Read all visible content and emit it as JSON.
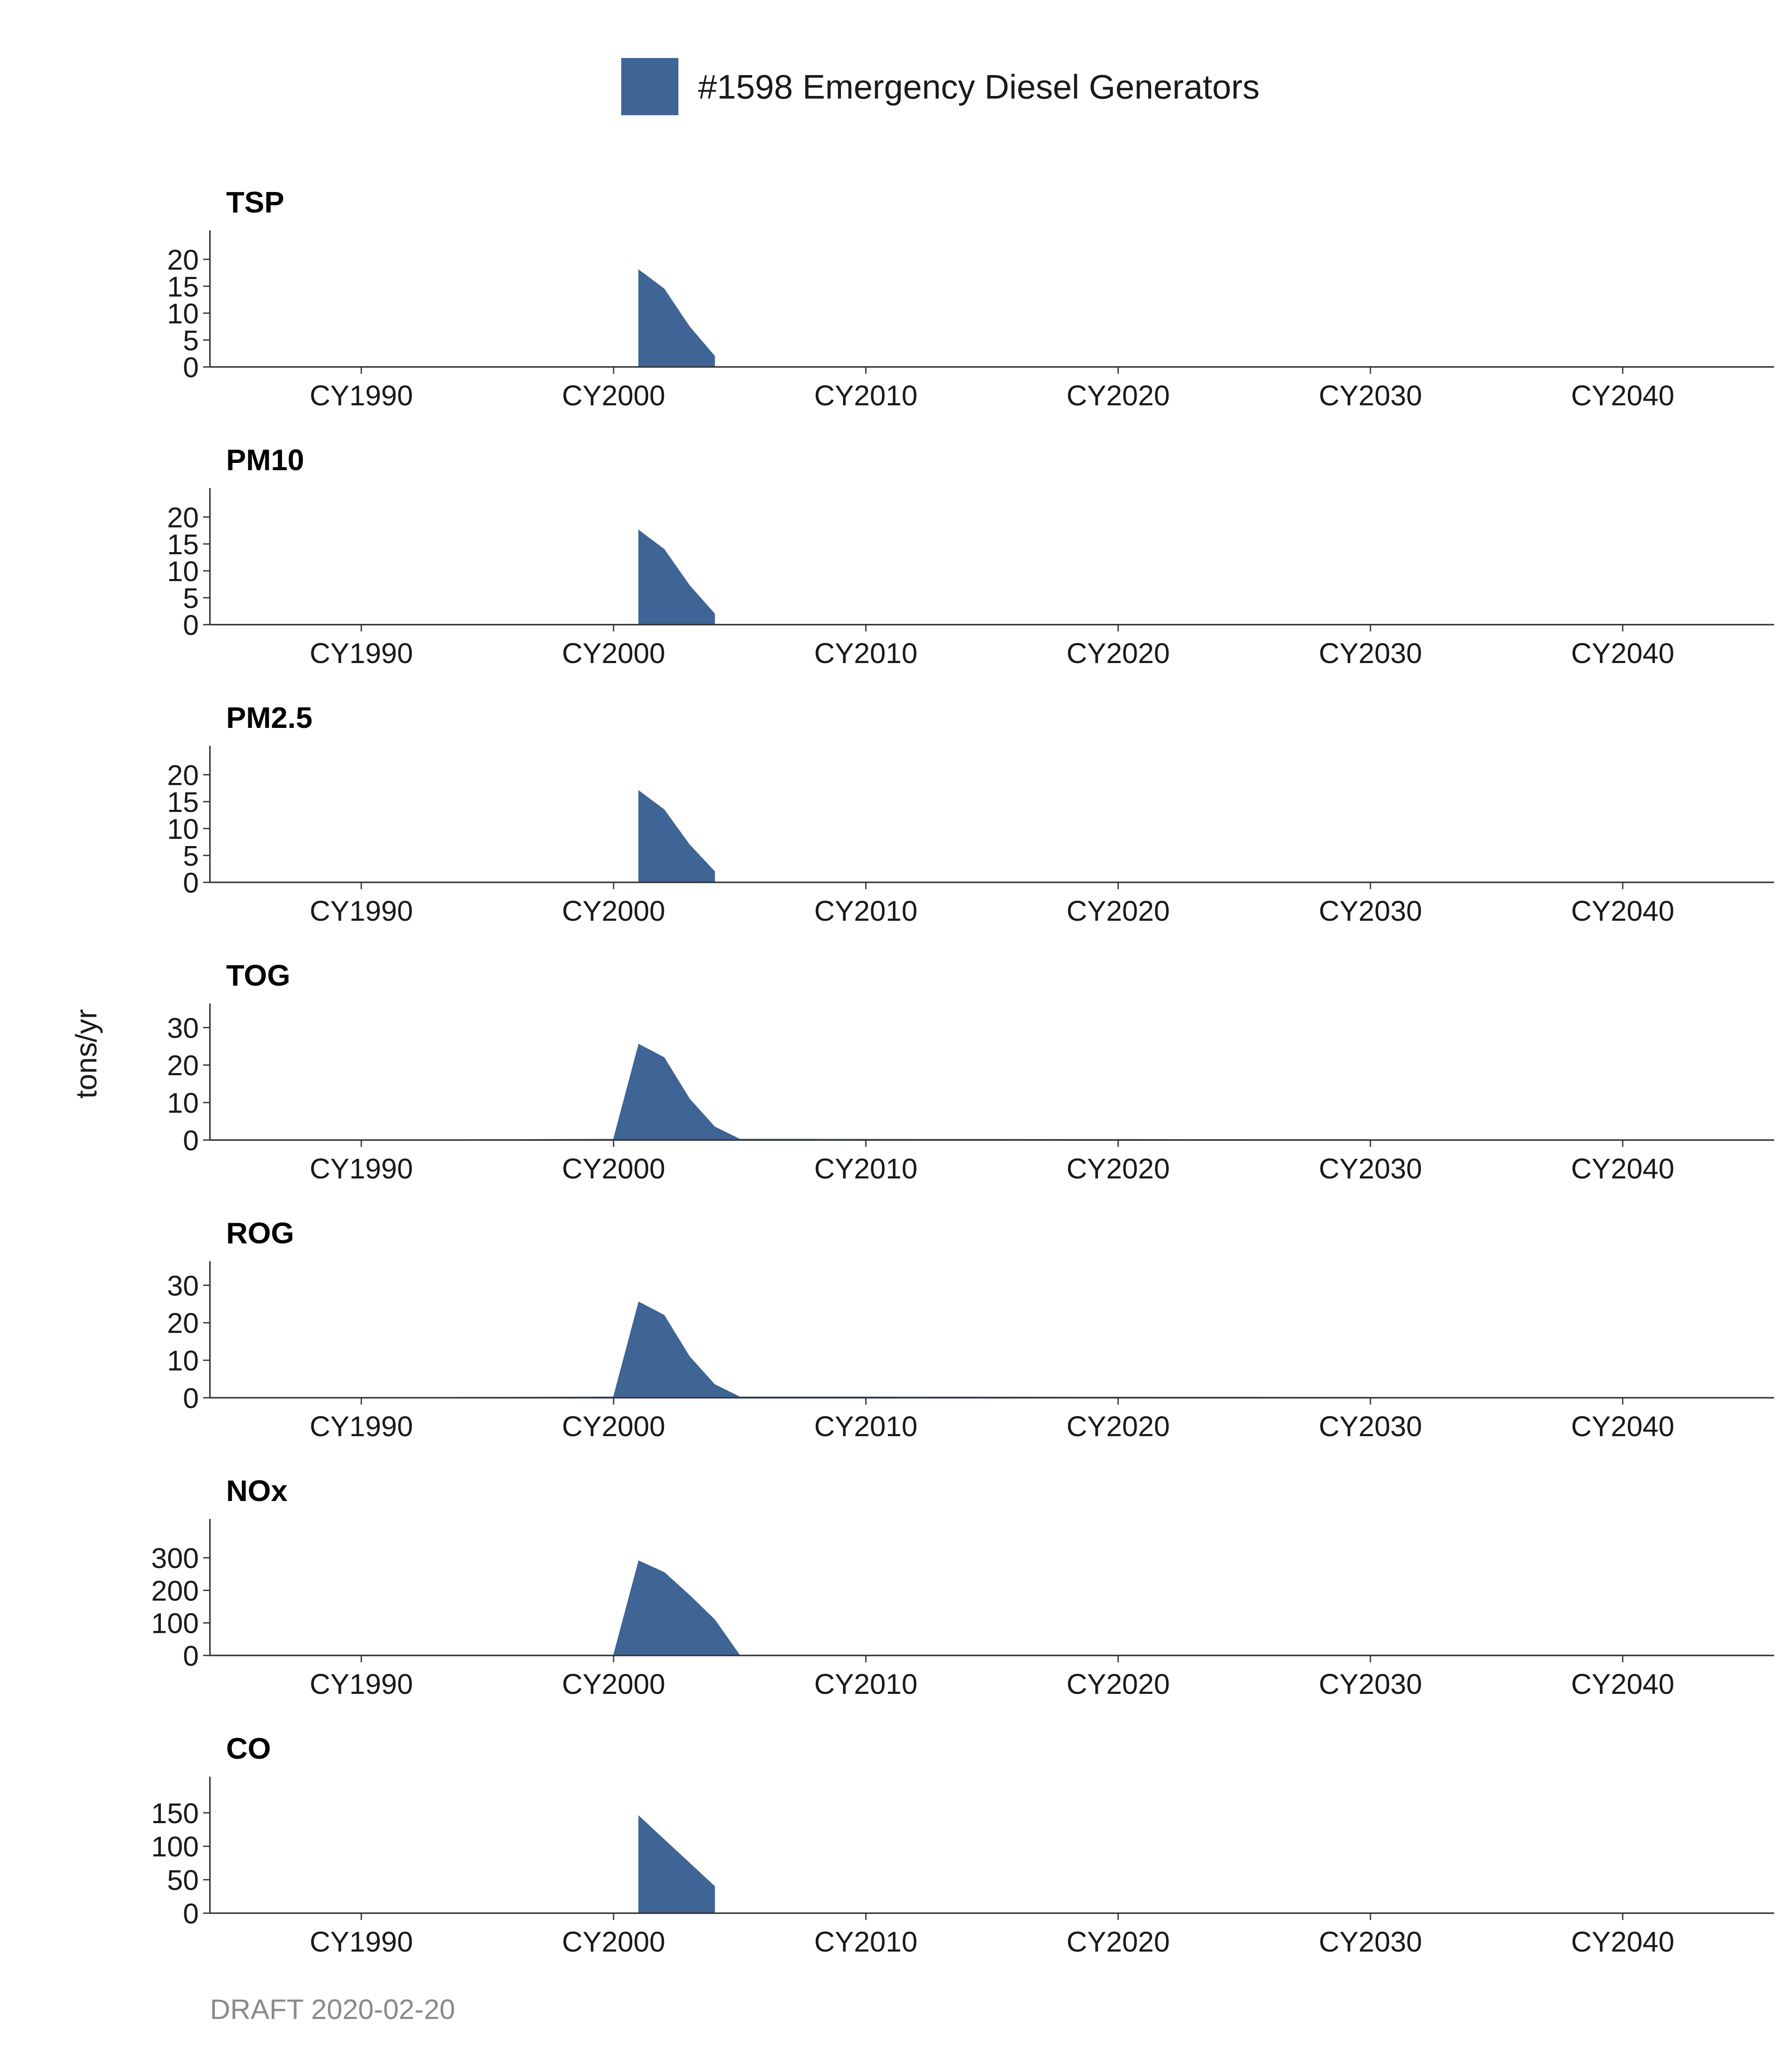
{
  "legend": {
    "label": "#1598 Emergency Diesel Generators",
    "color": "#3f6496"
  },
  "y_axis_title": "tons/yr",
  "caption": "DRAFT 2020-02-20",
  "x_ticks": [
    {
      "year": 1990,
      "label": "CY1990"
    },
    {
      "year": 2000,
      "label": "CY2000"
    },
    {
      "year": 2010,
      "label": "CY2010"
    },
    {
      "year": 2020,
      "label": "CY2020"
    },
    {
      "year": 2030,
      "label": "CY2030"
    },
    {
      "year": 2040,
      "label": "CY2040"
    }
  ],
  "chart_data": [
    {
      "type": "area",
      "title": "TSP",
      "xlim": [
        1984,
        2046
      ],
      "ylim": [
        0,
        23
      ],
      "yticks": [
        0,
        5,
        10,
        15,
        20
      ],
      "series": [
        {
          "name": "#1598 Emergency Diesel Generators",
          "points": [
            [
              2001,
              0
            ],
            [
              2001,
              18
            ],
            [
              2002,
              14.5
            ],
            [
              2003,
              7.5
            ],
            [
              2004,
              2
            ],
            [
              2004,
              0
            ]
          ]
        }
      ]
    },
    {
      "type": "area",
      "title": "PM10",
      "xlim": [
        1984,
        2046
      ],
      "ylim": [
        0,
        23
      ],
      "yticks": [
        0,
        5,
        10,
        15,
        20
      ],
      "series": [
        {
          "name": "#1598 Emergency Diesel Generators",
          "points": [
            [
              2001,
              0
            ],
            [
              2001,
              17.5
            ],
            [
              2002,
              14
            ],
            [
              2003,
              7.3
            ],
            [
              2004,
              2
            ],
            [
              2004,
              0
            ]
          ]
        }
      ]
    },
    {
      "type": "area",
      "title": "PM2.5",
      "xlim": [
        1984,
        2046
      ],
      "ylim": [
        0,
        23
      ],
      "yticks": [
        0,
        5,
        10,
        15,
        20
      ],
      "series": [
        {
          "name": "#1598 Emergency Diesel Generators",
          "points": [
            [
              2001,
              0
            ],
            [
              2001,
              17
            ],
            [
              2002,
              13.5
            ],
            [
              2003,
              7
            ],
            [
              2004,
              2
            ],
            [
              2004,
              0
            ]
          ]
        }
      ]
    },
    {
      "type": "area",
      "title": "TOG",
      "xlim": [
        1984,
        2046
      ],
      "ylim": [
        0,
        33
      ],
      "yticks": [
        0,
        10,
        20,
        30
      ],
      "series": [
        {
          "name": "#1598 Emergency Diesel Generators",
          "points": [
            [
              1990,
              0
            ],
            [
              2000,
              0.2
            ],
            [
              2001,
              25.5
            ],
            [
              2002,
              22
            ],
            [
              2003,
              11
            ],
            [
              2004,
              3.5
            ],
            [
              2005,
              0.2
            ],
            [
              2030,
              0.1
            ],
            [
              2030,
              0
            ]
          ]
        }
      ]
    },
    {
      "type": "area",
      "title": "ROG",
      "xlim": [
        1984,
        2046
      ],
      "ylim": [
        0,
        33
      ],
      "yticks": [
        0,
        10,
        20,
        30
      ],
      "series": [
        {
          "name": "#1598 Emergency Diesel Generators",
          "points": [
            [
              1990,
              0
            ],
            [
              2000,
              0.2
            ],
            [
              2001,
              25.5
            ],
            [
              2002,
              22
            ],
            [
              2003,
              11
            ],
            [
              2004,
              3.5
            ],
            [
              2005,
              0.2
            ],
            [
              2030,
              0.1
            ],
            [
              2030,
              0
            ]
          ]
        }
      ]
    },
    {
      "type": "area",
      "title": "NOx",
      "xlim": [
        1984,
        2046
      ],
      "ylim": [
        0,
        380
      ],
      "yticks": [
        0,
        100,
        200,
        300
      ],
      "series": [
        {
          "name": "#1598 Emergency Diesel Generators",
          "points": [
            [
              2000,
              0
            ],
            [
              2001,
              290
            ],
            [
              2002,
              255
            ],
            [
              2003,
              185
            ],
            [
              2004,
              110
            ],
            [
              2005,
              0
            ]
          ]
        }
      ]
    },
    {
      "type": "area",
      "title": "CO",
      "xlim": [
        1984,
        2046
      ],
      "ylim": [
        0,
        185
      ],
      "yticks": [
        0,
        50,
        100,
        150
      ],
      "series": [
        {
          "name": "#1598 Emergency Diesel Generators",
          "points": [
            [
              2001,
              0
            ],
            [
              2001,
              145
            ],
            [
              2002,
              110
            ],
            [
              2003,
              75
            ],
            [
              2004,
              40
            ],
            [
              2004,
              0
            ]
          ]
        }
      ]
    }
  ]
}
